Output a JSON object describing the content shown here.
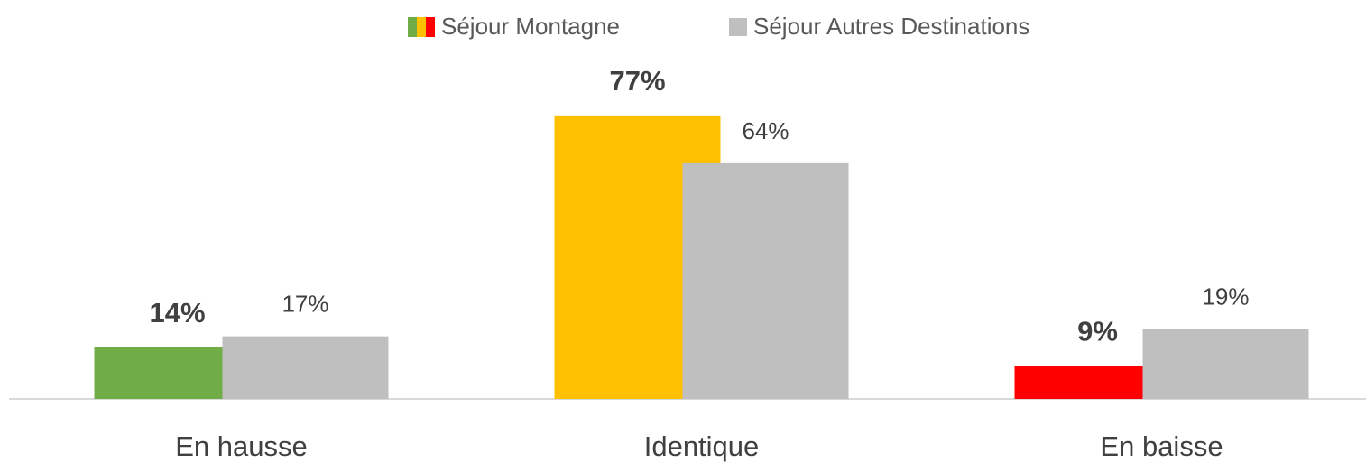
{
  "chart_data": {
    "type": "bar",
    "categories": [
      "En hausse",
      "Identique",
      "En baisse"
    ],
    "series": [
      {
        "name": "Séjour Montagne",
        "colors": [
          "#70ad47",
          "#ffc000",
          "#ff0000"
        ],
        "values": [
          14,
          77,
          9
        ],
        "value_labels": [
          "14%",
          "77%",
          "9%"
        ]
      },
      {
        "name": "Séjour Autres Destinations",
        "color": "#bfbfbf",
        "values": [
          17,
          64,
          19
        ],
        "value_labels": [
          "17%",
          "64%",
          "19%"
        ]
      }
    ],
    "ylim": [
      0,
      100
    ]
  }
}
